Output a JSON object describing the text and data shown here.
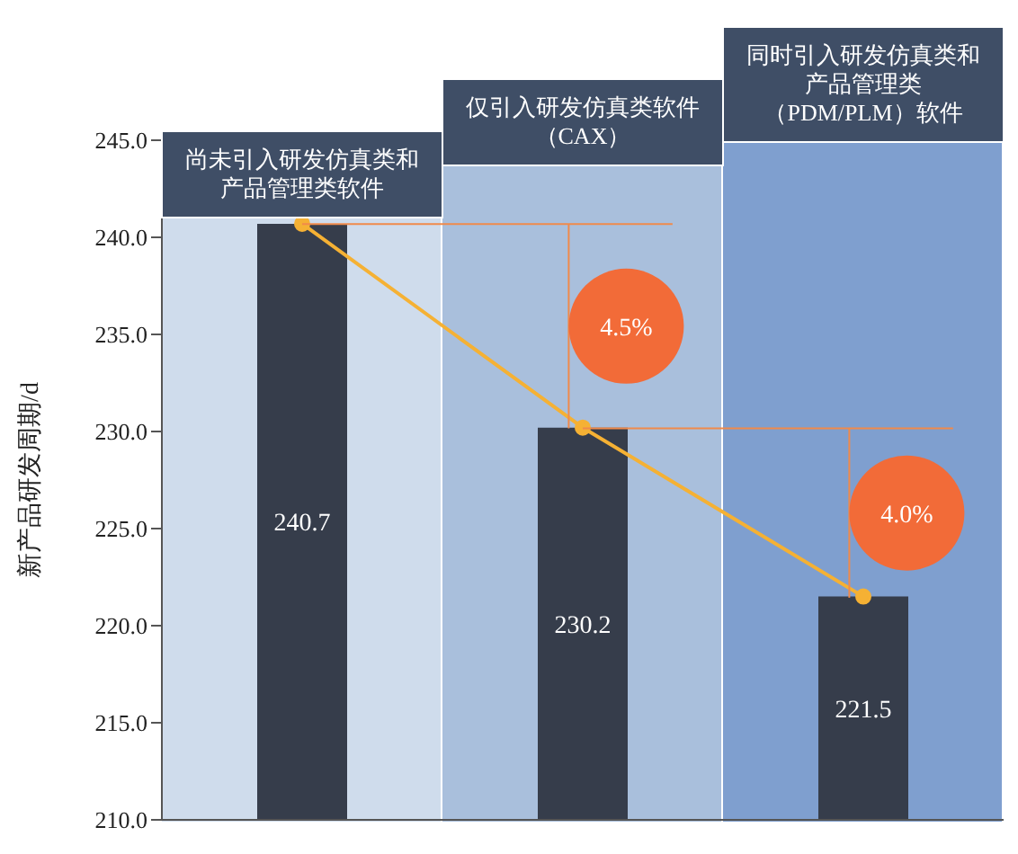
{
  "chart_data": {
    "type": "bar",
    "categories": [
      "尚未引入研发仿真类和产品管理类软件",
      "仅引入研发仿真类软件（CAX）",
      "同时引入研发仿真类和产品管理类（PDM/PLM）软件"
    ],
    "ylabel": "新产品研发周期/d",
    "series": [
      {
        "color": "#363d4b",
        "values": [
          240.7,
          230.2,
          221.5
        ],
        "value_labels": [
          "240.7",
          "230.2",
          "221.5"
        ]
      },
      {
        "type": "line",
        "color": "#f5b134",
        "values": [
          240.7,
          230.2,
          221.5
        ]
      }
    ],
    "marker": "circle",
    "legend": false,
    "grid": false,
    "annotations": [
      "4.5%",
      "4.0%"
    ],
    "ref_lines": [
      {
        "axis": "y",
        "value": 240.7,
        "color": "#f08a4b"
      },
      {
        "axis": "y",
        "value": 230.2,
        "color": "#f08a4b"
      }
    ],
    "bands": [
      {
        "axis": "x",
        "from": "尚未引入研发仿真类和产品管理类软件",
        "to": "尚未引入研发仿真类和产品管理类软件",
        "color": "#cfdcec"
      },
      {
        "axis": "x",
        "from": "仅引入研发仿真类软件（CAX）",
        "to": "仅引入研发仿真类软件（CAX）",
        "color": "#a9bfdc"
      },
      {
        "axis": "x",
        "from": "同时引入研发仿真类和产品管理类（PDM/PLM）软件",
        "to": "同时引入研发仿真类和产品管理类（PDM/PLM）软件",
        "color": "#7f9fcf"
      }
    ],
    "ylim": [
      210,
      245
    ],
    "yticks": [
      {
        "value": 210,
        "label": "210.0"
      },
      {
        "value": 215,
        "label": "215.0"
      },
      {
        "value": 220,
        "label": "220.0"
      },
      {
        "value": 225,
        "label": "225.0"
      },
      {
        "value": 230,
        "label": "230.0"
      },
      {
        "value": 235,
        "label": "235.0"
      },
      {
        "value": 240,
        "label": "240.0"
      },
      {
        "value": 245,
        "label": "245.0"
      }
    ]
  }
}
